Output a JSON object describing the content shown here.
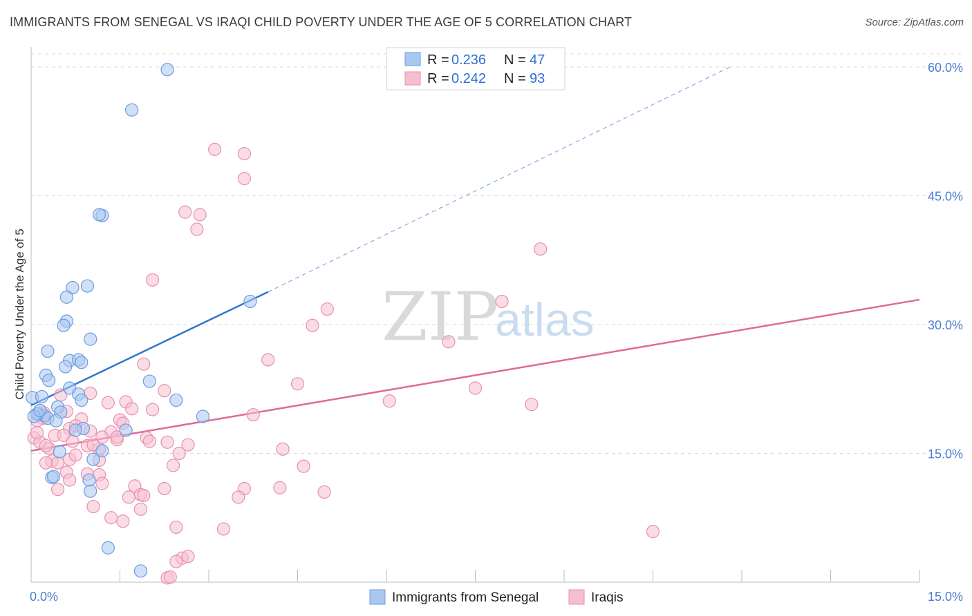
{
  "title": "IMMIGRANTS FROM SENEGAL VS IRAQI CHILD POVERTY UNDER THE AGE OF 5 CORRELATION CHART",
  "source": "Source: ZipAtlas.com",
  "watermark": {
    "zip": "ZIP",
    "atlas": "atlas"
  },
  "colors": {
    "senegal_fill": "#a9c8f0",
    "senegal_stroke": "#6a9be0",
    "senegal_line": "#2f74d0",
    "iraqi_fill": "#f6bfd0",
    "iraqi_stroke": "#ea8fae",
    "iraqi_line": "#e06a95",
    "grid": "#d9d9d9",
    "axis_label": "#4a7fd4"
  },
  "legend": {
    "rows": [
      {
        "r_label": "R = ",
        "r_value": "0.236",
        "n_label": "N = ",
        "n_value": "47"
      },
      {
        "r_label": "R = ",
        "r_value": "0.242",
        "n_label": "N = ",
        "n_value": "93"
      }
    ]
  },
  "chart_data": {
    "type": "scatter",
    "xlabel": "",
    "ylabel": "Child Poverty Under the Age of 5",
    "xlim": [
      0,
      15
    ],
    "ylim": [
      0,
      60
    ],
    "x_tick_labels": [
      "0.0%",
      "15.0%"
    ],
    "y_ticks": [
      15,
      30,
      45,
      60
    ],
    "y_tick_labels": [
      "15.0%",
      "30.0%",
      "45.0%",
      "60.0%"
    ],
    "legend_position": "top-center",
    "series": [
      {
        "name": "Immigrants from Senegal",
        "R": 0.236,
        "N": 47,
        "trend": {
          "x": [
            0.0,
            4.0
          ],
          "y": [
            20.6,
            33.8
          ],
          "dashed_extension": {
            "x": [
              4.0,
              11.8
            ],
            "y": [
              33.8,
              60.0
            ]
          }
        },
        "points": [
          [
            2.3,
            59.7
          ],
          [
            1.7,
            55.0
          ],
          [
            1.2,
            42.7
          ],
          [
            1.15,
            42.8
          ],
          [
            0.95,
            34.5
          ],
          [
            0.7,
            34.3
          ],
          [
            0.6,
            33.2
          ],
          [
            0.6,
            30.4
          ],
          [
            0.55,
            29.9
          ],
          [
            1.0,
            28.3
          ],
          [
            0.28,
            26.9
          ],
          [
            0.65,
            25.8
          ],
          [
            0.8,
            25.9
          ],
          [
            0.58,
            25.1
          ],
          [
            0.85,
            25.6
          ],
          [
            0.25,
            24.1
          ],
          [
            0.3,
            23.5
          ],
          [
            2.0,
            23.4
          ],
          [
            0.65,
            22.6
          ],
          [
            0.8,
            21.9
          ],
          [
            0.85,
            21.2
          ],
          [
            2.45,
            21.2
          ],
          [
            0.02,
            21.5
          ],
          [
            0.18,
            21.6
          ],
          [
            0.45,
            20.4
          ],
          [
            0.12,
            19.6
          ],
          [
            0.22,
            19.4
          ],
          [
            0.1,
            19.6
          ],
          [
            0.28,
            19.1
          ],
          [
            0.05,
            19.3
          ],
          [
            0.5,
            19.8
          ],
          [
            0.42,
            18.8
          ],
          [
            2.9,
            19.3
          ],
          [
            0.88,
            17.9
          ],
          [
            0.75,
            17.7
          ],
          [
            1.6,
            17.7
          ],
          [
            1.2,
            15.3
          ],
          [
            0.48,
            15.2
          ],
          [
            1.05,
            14.3
          ],
          [
            0.35,
            12.2
          ],
          [
            0.38,
            12.3
          ],
          [
            0.98,
            11.9
          ],
          [
            1.0,
            10.6
          ],
          [
            1.3,
            4.0
          ],
          [
            1.85,
            1.3
          ],
          [
            3.7,
            32.7
          ],
          [
            0.15,
            20.0
          ]
        ]
      },
      {
        "name": "Iraqis",
        "R": 0.242,
        "N": 93,
        "trend": {
          "x": [
            0.0,
            15.0
          ],
          "y": [
            15.3,
            32.9
          ]
        },
        "points": [
          [
            3.1,
            50.4
          ],
          [
            3.6,
            49.9
          ],
          [
            3.6,
            47.0
          ],
          [
            2.6,
            43.1
          ],
          [
            2.85,
            42.8
          ],
          [
            2.8,
            41.1
          ],
          [
            8.6,
            38.8
          ],
          [
            2.05,
            35.2
          ],
          [
            5.0,
            31.8
          ],
          [
            7.95,
            32.7
          ],
          [
            4.75,
            29.9
          ],
          [
            7.05,
            28.0
          ],
          [
            1.9,
            25.4
          ],
          [
            4.0,
            25.9
          ],
          [
            4.5,
            23.1
          ],
          [
            7.5,
            22.6
          ],
          [
            2.25,
            22.3
          ],
          [
            1.0,
            22.0
          ],
          [
            6.05,
            21.1
          ],
          [
            8.45,
            20.7
          ],
          [
            0.5,
            21.8
          ],
          [
            1.3,
            20.9
          ],
          [
            1.6,
            21.0
          ],
          [
            1.7,
            20.2
          ],
          [
            2.05,
            20.1
          ],
          [
            3.75,
            19.5
          ],
          [
            0.15,
            20.0
          ],
          [
            0.22,
            19.7
          ],
          [
            0.2,
            19.1
          ],
          [
            0.1,
            18.8
          ],
          [
            0.6,
            19.9
          ],
          [
            0.85,
            19.0
          ],
          [
            1.5,
            18.9
          ],
          [
            1.55,
            18.5
          ],
          [
            0.75,
            18.2
          ],
          [
            0.65,
            17.9
          ],
          [
            1.0,
            17.6
          ],
          [
            1.35,
            17.5
          ],
          [
            0.4,
            17.1
          ],
          [
            0.55,
            17.1
          ],
          [
            1.2,
            16.9
          ],
          [
            1.45,
            16.6
          ],
          [
            1.95,
            16.8
          ],
          [
            2.0,
            16.4
          ],
          [
            2.3,
            16.3
          ],
          [
            2.65,
            16.0
          ],
          [
            4.25,
            15.5
          ],
          [
            0.05,
            16.8
          ],
          [
            0.15,
            16.3
          ],
          [
            0.3,
            15.6
          ],
          [
            0.7,
            16.4
          ],
          [
            0.95,
            15.9
          ],
          [
            1.15,
            15.5
          ],
          [
            2.5,
            15.0
          ],
          [
            1.15,
            14.2
          ],
          [
            0.65,
            14.3
          ],
          [
            0.35,
            14.1
          ],
          [
            0.25,
            13.9
          ],
          [
            0.45,
            13.9
          ],
          [
            2.4,
            13.6
          ],
          [
            4.6,
            13.5
          ],
          [
            0.6,
            12.8
          ],
          [
            0.95,
            12.6
          ],
          [
            1.15,
            12.5
          ],
          [
            0.65,
            11.9
          ],
          [
            1.2,
            11.5
          ],
          [
            1.75,
            11.2
          ],
          [
            2.25,
            10.9
          ],
          [
            3.6,
            10.9
          ],
          [
            4.2,
            11.0
          ],
          [
            4.95,
            10.5
          ],
          [
            1.65,
            9.9
          ],
          [
            1.85,
            10.2
          ],
          [
            1.9,
            10.1
          ],
          [
            3.5,
            9.9
          ],
          [
            1.05,
            8.8
          ],
          [
            1.85,
            8.5
          ],
          [
            1.35,
            7.5
          ],
          [
            1.55,
            7.1
          ],
          [
            2.45,
            6.4
          ],
          [
            3.25,
            6.2
          ],
          [
            10.5,
            5.9
          ],
          [
            2.55,
            2.8
          ],
          [
            2.65,
            3.0
          ],
          [
            2.45,
            2.4
          ],
          [
            2.3,
            0.5
          ],
          [
            2.35,
            0.6
          ],
          [
            0.45,
            10.8
          ],
          [
            0.25,
            15.9
          ],
          [
            0.1,
            17.4
          ],
          [
            1.45,
            16.9
          ],
          [
            1.05,
            16.0
          ],
          [
            0.75,
            14.8
          ]
        ]
      }
    ]
  },
  "bottom_legend": [
    "Immigrants from Senegal",
    "Iraqis"
  ]
}
